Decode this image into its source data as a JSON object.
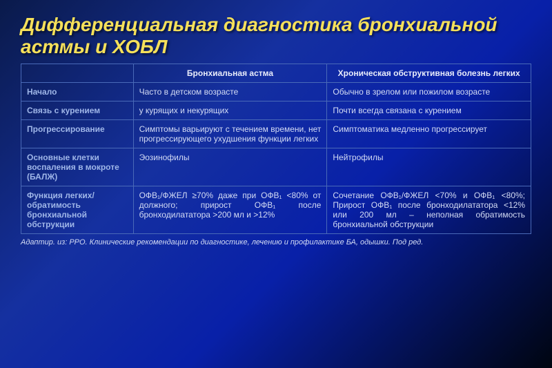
{
  "title": "Дифференциальная диагностика бронхиальной астмы и ХОБЛ",
  "header": {
    "col1": "",
    "col2": "Бронхиальная астма",
    "col3": "Хроническая обструктивная болезнь легких"
  },
  "rows": [
    {
      "label": "Начало",
      "asthma": "Часто в детском возрасте",
      "copd": "Обычно в зрелом или пожилом возрасте"
    },
    {
      "label": "Связь с курением",
      "asthma": "у курящих и некурящих",
      "copd": "Почти всегда связана с курением"
    },
    {
      "label": "Прогрессирование",
      "asthma": "Симптомы варьируют с течением времени, нет прогрессирующего ухудшения функции легких",
      "copd": "Симптоматика медленно прогрессирует"
    },
    {
      "label": "Основные клетки воспаления в мокроте (БАЛЖ)",
      "asthma": "Эозинофилы",
      "copd": "Нейтрофилы"
    },
    {
      "label": "Функция легких/обратимость бронхиальной обструкции",
      "asthma": "ОФВ₁/ФЖЕЛ ≥70% даже при ОФВ₁ <80% от должного; прирост ОФВ₁ после бронходилататора >200 мл и >12%",
      "copd": "Сочетание ОФВ₁/ФЖЕЛ <70% и ОФВ₁ <80%;\nПрирост ОФВ₁ после бронходилататора <12% или 200 мл – неполная обратимость бронхиальной обструкции"
    }
  ],
  "footer": "Адаптир. из: РРО. Клинические рекомендации по диагностике, лечению и профилактике БА, одышки. Под ред.",
  "colors": {
    "titleColor": "#f5e05a",
    "textColor": "#d4dcf5",
    "labelColor": "#9fb6e8",
    "borderColor": "#4a6ab8",
    "bgGradientStart": "#0a1a4a",
    "bgGradientEnd": "#000510"
  },
  "fontSizes": {
    "title": 28,
    "cell": 12,
    "footer": 11
  }
}
